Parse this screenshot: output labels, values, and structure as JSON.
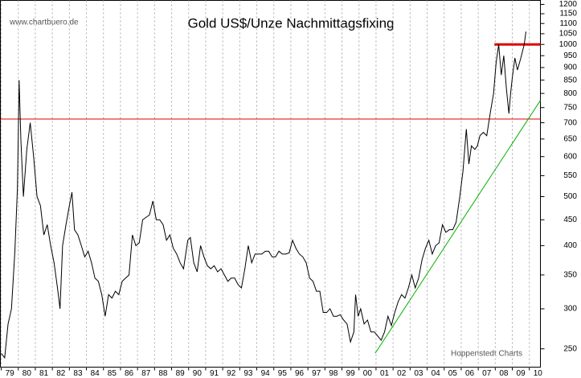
{
  "chart_data": {
    "type": "line",
    "title": "Gold US$/Unze Nachmittagsfixing",
    "source": "www.chartbuero.de",
    "credit": "Hoppenstedt Charts",
    "color": "#000000",
    "log_y": true,
    "grid": "x",
    "xlim": [
      1978.95,
      2010.65
    ],
    "ylim": [
      230,
      1222
    ],
    "xticks": [
      {
        "value": 1979,
        "label": "79"
      },
      {
        "value": 1980,
        "label": "80"
      },
      {
        "value": 1981,
        "label": "81"
      },
      {
        "value": 1982,
        "label": "82"
      },
      {
        "value": 1983,
        "label": "83"
      },
      {
        "value": 1984,
        "label": "84"
      },
      {
        "value": 1985,
        "label": "85"
      },
      {
        "value": 1986,
        "label": "86"
      },
      {
        "value": 1987,
        "label": "87"
      },
      {
        "value": 1988,
        "label": "88"
      },
      {
        "value": 1989,
        "label": "89"
      },
      {
        "value": 1990,
        "label": "90"
      },
      {
        "value": 1991,
        "label": "91"
      },
      {
        "value": 1992,
        "label": "92"
      },
      {
        "value": 1993,
        "label": "93"
      },
      {
        "value": 1994,
        "label": "94"
      },
      {
        "value": 1995,
        "label": "95"
      },
      {
        "value": 1996,
        "label": "96"
      },
      {
        "value": 1997,
        "label": "97"
      },
      {
        "value": 1998,
        "label": "98"
      },
      {
        "value": 1999,
        "label": "99"
      },
      {
        "value": 2000,
        "label": "00"
      },
      {
        "value": 2001,
        "label": "01"
      },
      {
        "value": 2002,
        "label": "02"
      },
      {
        "value": 2003,
        "label": "03"
      },
      {
        "value": 2004,
        "label": "04"
      },
      {
        "value": 2005,
        "label": "05"
      },
      {
        "value": 2006,
        "label": "06"
      },
      {
        "value": 2007,
        "label": "07"
      },
      {
        "value": 2008,
        "label": "08"
      },
      {
        "value": 2009,
        "label": "09"
      },
      {
        "value": 2010,
        "label": "10"
      }
    ],
    "yticks": [
      250,
      300,
      350,
      400,
      450,
      500,
      550,
      600,
      650,
      700,
      750,
      800,
      850,
      900,
      950,
      1000,
      1050,
      1100,
      1150,
      1200
    ],
    "hlines": [
      {
        "y": 712,
        "color": "#e00000",
        "width": 1
      },
      {
        "y": 1000,
        "x": [
          2007.95,
          2010.65
        ],
        "color": "#e00000",
        "width": 3
      }
    ],
    "trendline": {
      "x": [
        2000.95,
        2010.65
      ],
      "y": [
        245,
        775
      ],
      "color": "#00b000"
    },
    "x": [
      1979.0,
      1979.2,
      1979.4,
      1979.6,
      1979.8,
      1979.95,
      1980.05,
      1980.15,
      1980.3,
      1980.5,
      1980.7,
      1980.9,
      1981.1,
      1981.3,
      1981.5,
      1981.7,
      1981.9,
      1982.1,
      1982.3,
      1982.45,
      1982.6,
      1982.8,
      1983.0,
      1983.15,
      1983.3,
      1983.5,
      1983.7,
      1983.9,
      1984.1,
      1984.3,
      1984.5,
      1984.7,
      1984.9,
      1985.1,
      1985.3,
      1985.5,
      1985.7,
      1985.9,
      1986.1,
      1986.3,
      1986.5,
      1986.7,
      1986.9,
      1987.1,
      1987.3,
      1987.5,
      1987.7,
      1987.9,
      1988.1,
      1988.3,
      1988.5,
      1988.7,
      1988.9,
      1989.1,
      1989.3,
      1989.5,
      1989.7,
      1989.95,
      1990.1,
      1990.3,
      1990.5,
      1990.7,
      1990.9,
      1991.1,
      1991.3,
      1991.5,
      1991.7,
      1991.9,
      1992.1,
      1992.3,
      1992.5,
      1992.7,
      1992.9,
      1993.1,
      1993.3,
      1993.5,
      1993.7,
      1993.9,
      1994.1,
      1994.3,
      1994.5,
      1994.7,
      1994.9,
      1995.1,
      1995.3,
      1995.5,
      1995.7,
      1995.9,
      1996.1,
      1996.3,
      1996.5,
      1996.7,
      1996.9,
      1997.1,
      1997.3,
      1997.5,
      1997.7,
      1997.9,
      1998.1,
      1998.3,
      1998.5,
      1998.7,
      1998.9,
      1999.1,
      1999.3,
      1999.5,
      1999.7,
      1999.8,
      1999.95,
      2000.1,
      2000.3,
      2000.5,
      2000.7,
      2000.9,
      2001.1,
      2001.3,
      2001.5,
      2001.7,
      2001.9,
      2002.1,
      2002.3,
      2002.5,
      2002.7,
      2002.9,
      2003.1,
      2003.3,
      2003.5,
      2003.7,
      2003.9,
      2004.1,
      2004.3,
      2004.5,
      2004.7,
      2004.9,
      2005.1,
      2005.3,
      2005.5,
      2005.7,
      2005.9,
      2006.1,
      2006.3,
      2006.45,
      2006.6,
      2006.8,
      2006.95,
      2007.1,
      2007.3,
      2007.5,
      2007.7,
      2007.9,
      2008.05,
      2008.2,
      2008.35,
      2008.5,
      2008.65,
      2008.8,
      2008.9,
      2009.0,
      2009.15,
      2009.3,
      2009.5,
      2009.7,
      2009.8
    ],
    "values": [
      245,
      240,
      280,
      300,
      390,
      520,
      850,
      650,
      500,
      620,
      700,
      600,
      500,
      480,
      420,
      440,
      400,
      370,
      330,
      300,
      400,
      440,
      480,
      510,
      430,
      420,
      400,
      380,
      390,
      370,
      345,
      340,
      320,
      290,
      320,
      315,
      325,
      320,
      340,
      345,
      350,
      420,
      400,
      405,
      450,
      455,
      460,
      490,
      450,
      450,
      440,
      410,
      420,
      395,
      385,
      370,
      360,
      410,
      415,
      370,
      355,
      400,
      380,
      365,
      360,
      365,
      355,
      360,
      350,
      340,
      345,
      345,
      335,
      330,
      360,
      400,
      370,
      385,
      385,
      385,
      390,
      390,
      380,
      380,
      390,
      385,
      385,
      387,
      410,
      395,
      385,
      380,
      370,
      345,
      340,
      325,
      325,
      295,
      295,
      300,
      290,
      290,
      292,
      285,
      280,
      258,
      270,
      320,
      290,
      300,
      280,
      285,
      270,
      270,
      265,
      260,
      270,
      290,
      278,
      295,
      310,
      320,
      315,
      330,
      350,
      330,
      345,
      375,
      395,
      410,
      385,
      400,
      405,
      440,
      425,
      430,
      430,
      445,
      495,
      560,
      680,
      580,
      630,
      620,
      630,
      660,
      670,
      660,
      730,
      800,
      920,
      1000,
      870,
      950,
      820,
      730,
      800,
      860,
      940,
      890,
      940,
      1000,
      1060
    ]
  }
}
